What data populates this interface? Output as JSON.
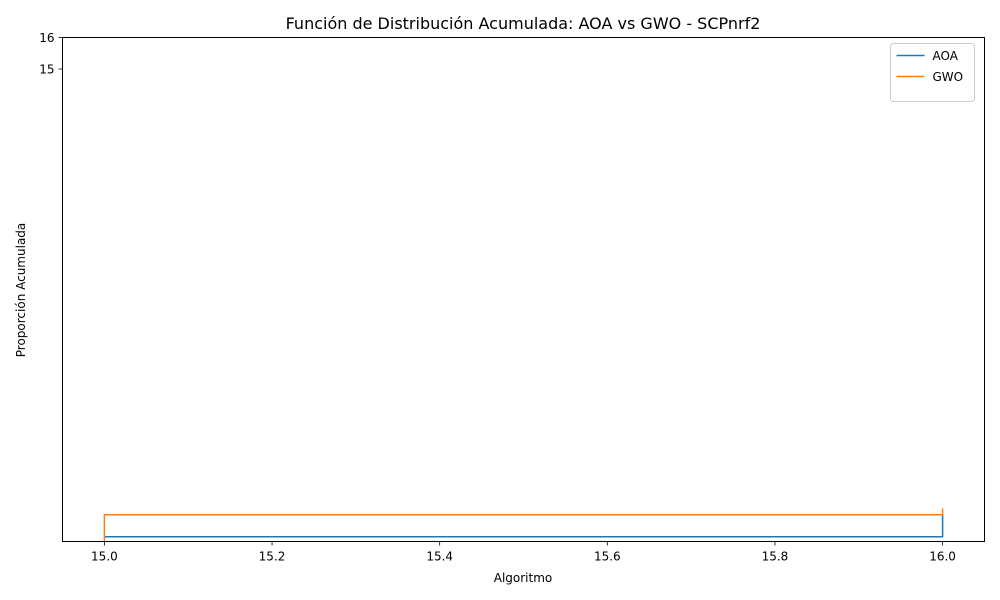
{
  "chart_data": {
    "type": "line",
    "title": "Función de Distribución Acumulada: AOA vs GWO - SCPnrf2",
    "xlabel": "Algoritmo",
    "ylabel": "Proporción Acumulada",
    "xlim": [
      14.95,
      16.05
    ],
    "ylim": [
      0,
      16
    ],
    "xticks": [
      "15.0",
      "15.2",
      "15.4",
      "15.6",
      "15.8",
      "16.0"
    ],
    "yticks": [
      "15",
      "16"
    ],
    "legend_position": "top-right",
    "series": [
      {
        "name": "AOA",
        "color": "#1f77b4",
        "x": [
          15.0,
          16.0,
          16.0
        ],
        "y": [
          0.15,
          0.15,
          0.85
        ]
      },
      {
        "name": "GWO",
        "color": "#ff7f0e",
        "x": [
          15.0,
          15.0,
          16.0,
          16.0
        ],
        "y": [
          0.0,
          0.85,
          0.85,
          1.05
        ]
      }
    ]
  }
}
